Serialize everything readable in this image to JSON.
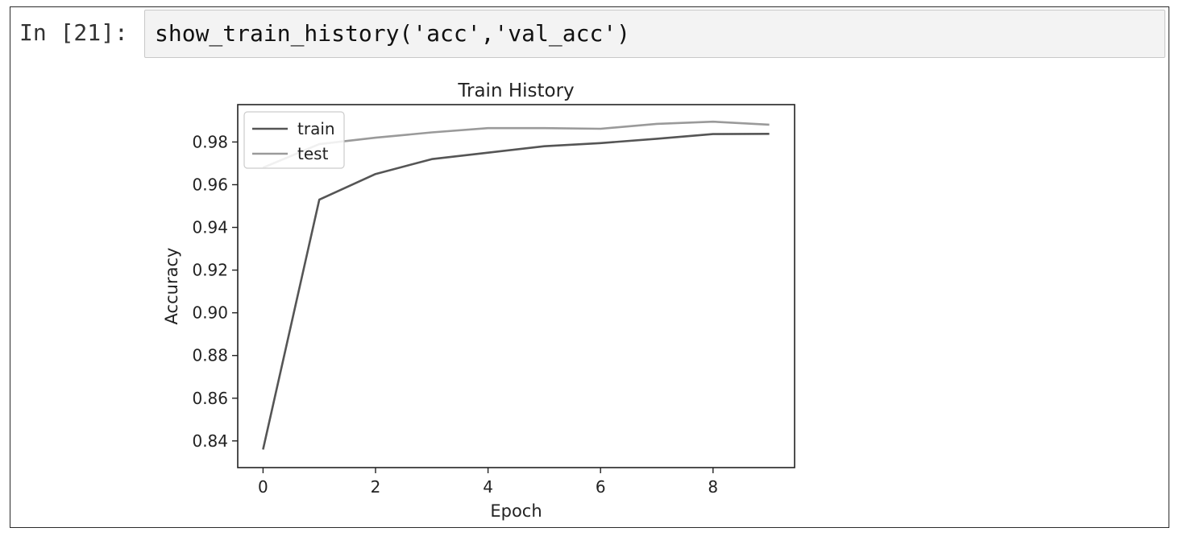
{
  "cell": {
    "prompt": "In [21]:",
    "code": "show_train_history('acc','val_acc')"
  },
  "chart_data": {
    "type": "line",
    "title": "Train History",
    "xlabel": "Epoch",
    "ylabel": "Accuracy",
    "x": [
      0,
      1,
      2,
      3,
      4,
      5,
      6,
      7,
      8,
      9
    ],
    "xlim": [
      -0.45,
      9.45
    ],
    "ylim": [
      0.8275,
      0.9975
    ],
    "xticks": [
      0,
      2,
      4,
      6,
      8
    ],
    "yticks": [
      0.84,
      0.86,
      0.88,
      0.9,
      0.92,
      0.94,
      0.96,
      0.98
    ],
    "ytick_labels": [
      "0.84",
      "0.86",
      "0.88",
      "0.90",
      "0.92",
      "0.94",
      "0.96",
      "0.98"
    ],
    "legend_position": "top-left",
    "grid": false,
    "series": [
      {
        "name": "train",
        "color": "#555555",
        "values": [
          0.836,
          0.953,
          0.965,
          0.972,
          0.975,
          0.978,
          0.9795,
          0.9815,
          0.9837,
          0.9838
        ]
      },
      {
        "name": "test",
        "color": "#9a9a9a",
        "values": [
          0.968,
          0.979,
          0.982,
          0.9845,
          0.9865,
          0.9865,
          0.9862,
          0.9885,
          0.9895,
          0.9881
        ]
      }
    ]
  }
}
